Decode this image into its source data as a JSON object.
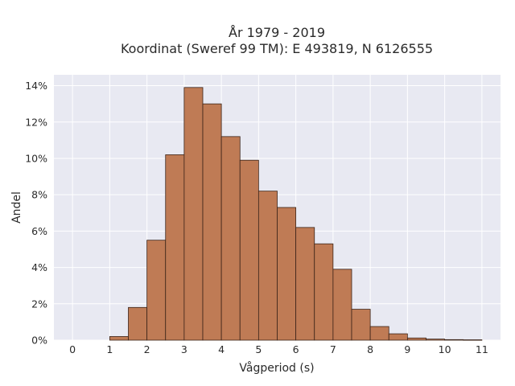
{
  "chart_data": {
    "type": "bar",
    "title_lines": [
      "År 1979 - 2019",
      "Koordinat (Sweref 99 TM): E 493819, N 6126555"
    ],
    "xlabel": "Vågperiod (s)",
    "ylabel": "Andel",
    "xlim": [
      -0.5,
      11.5
    ],
    "ylim": [
      0,
      14.6
    ],
    "x_ticks": [
      0,
      1,
      2,
      3,
      4,
      5,
      6,
      7,
      8,
      9,
      10,
      11
    ],
    "y_ticks": [
      0,
      2,
      4,
      6,
      8,
      10,
      12,
      14
    ],
    "y_tick_suffix": "%",
    "bin_width": 0.5,
    "bins": [
      {
        "x0": 1.0,
        "value": 0.2
      },
      {
        "x0": 1.5,
        "value": 1.8
      },
      {
        "x0": 2.0,
        "value": 5.5
      },
      {
        "x0": 2.5,
        "value": 10.2
      },
      {
        "x0": 3.0,
        "value": 13.9
      },
      {
        "x0": 3.5,
        "value": 13.0
      },
      {
        "x0": 4.0,
        "value": 11.2
      },
      {
        "x0": 4.5,
        "value": 9.9
      },
      {
        "x0": 5.0,
        "value": 8.2
      },
      {
        "x0": 5.5,
        "value": 7.3
      },
      {
        "x0": 6.0,
        "value": 6.2
      },
      {
        "x0": 6.5,
        "value": 5.3
      },
      {
        "x0": 7.0,
        "value": 3.9
      },
      {
        "x0": 7.5,
        "value": 1.7
      },
      {
        "x0": 8.0,
        "value": 0.75
      },
      {
        "x0": 8.5,
        "value": 0.35
      },
      {
        "x0": 9.0,
        "value": 0.12
      },
      {
        "x0": 9.5,
        "value": 0.06
      },
      {
        "x0": 10.0,
        "value": 0.03
      },
      {
        "x0": 10.5,
        "value": 0.02
      }
    ],
    "grid": true,
    "colors": {
      "bar_fill": "#bf7b55",
      "bar_edge": "#3b2418",
      "plot_background": "#e8e9f2",
      "grid": "#ffffff"
    }
  }
}
